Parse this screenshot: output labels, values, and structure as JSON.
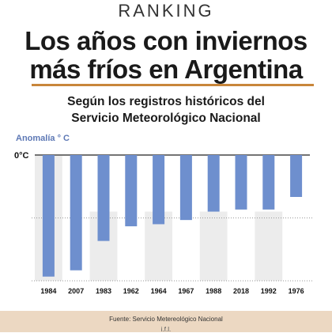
{
  "header": {
    "kicker": "RANKING",
    "title_line1": "Los años con inviernos",
    "title_line2": "más fríos en Argentina",
    "subtitle_line1": "Según los registros históricos del",
    "subtitle_line2": "Servicio Meteorológico Nacional"
  },
  "footer": {
    "source": "Fuente: Servicio Metereológico Nacional",
    "mark": "i.f.l."
  },
  "colors": {
    "bar": "#6e8fce",
    "accent": "#c8863a",
    "band": "#ececec",
    "ylabel": "#5d78b5"
  },
  "chart_data": {
    "type": "bar",
    "ylabel": "Anomalía ° C",
    "zero_label": "0°C",
    "categories": [
      "1984",
      "2007",
      "1983",
      "1962",
      "1964",
      "1967",
      "1988",
      "2018",
      "1992",
      "1976"
    ],
    "values": [
      -2.9,
      -2.75,
      -2.05,
      -1.7,
      -1.65,
      -1.55,
      -1.35,
      -1.3,
      -1.3,
      -1.0
    ],
    "ylim": [
      -3.0,
      0
    ],
    "grid": true,
    "legend": "none"
  }
}
